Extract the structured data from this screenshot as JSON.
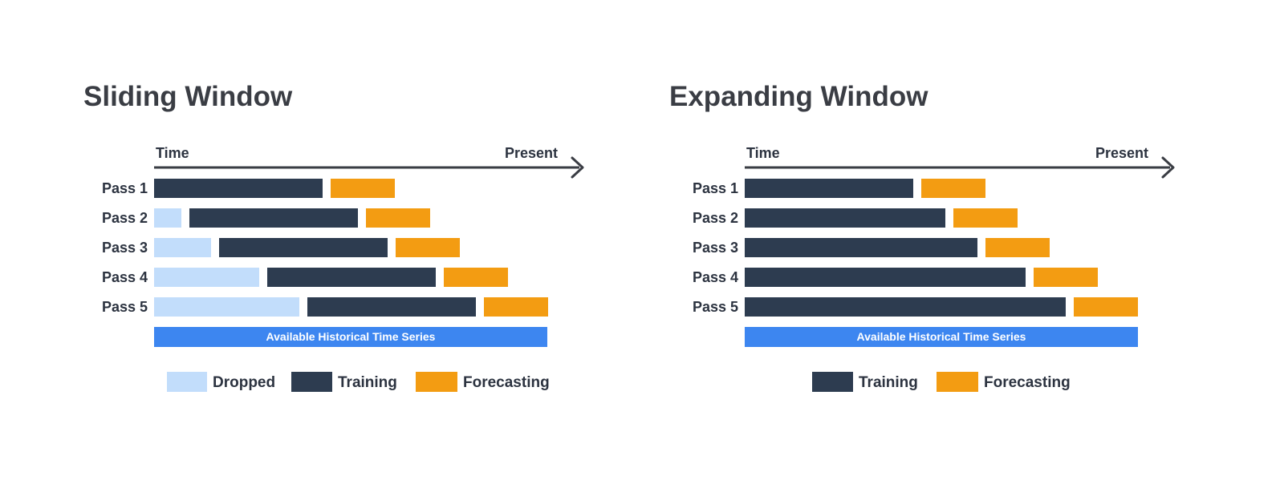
{
  "colors": {
    "dropped": "#c2ddfb",
    "training": "#2d3c50",
    "forecasting": "#f39c12",
    "history": "#3d86f0",
    "axis": "#3a3d44"
  },
  "panels": [
    {
      "id": "sliding",
      "title": "Sliding Window",
      "axis": {
        "start_label": "Time",
        "end_label": "Present"
      },
      "passes": [
        {
          "label": "Pass 1",
          "dropped": 0,
          "training": 21,
          "forecasting": 8
        },
        {
          "label": "Pass 2",
          "dropped": 3.4,
          "training": 21,
          "forecasting": 8
        },
        {
          "label": "Pass 3",
          "dropped": 7.1,
          "training": 21,
          "forecasting": 8
        },
        {
          "label": "Pass 4",
          "dropped": 13.1,
          "training": 21,
          "forecasting": 8
        },
        {
          "label": "Pass 5",
          "dropped": 18.1,
          "training": 21,
          "forecasting": 8
        }
      ],
      "history_label": "Available Historical Time Series",
      "legend": [
        {
          "key": "dropped",
          "label": "Dropped"
        },
        {
          "key": "training",
          "label": "Training"
        },
        {
          "key": "forecasting",
          "label": "Forecasting"
        }
      ]
    },
    {
      "id": "expanding",
      "title": "Expanding Window",
      "axis": {
        "start_label": "Time",
        "end_label": "Present"
      },
      "passes": [
        {
          "label": "Pass 1",
          "dropped": 0,
          "training": 21,
          "forecasting": 8
        },
        {
          "label": "Pass 2",
          "dropped": 0,
          "training": 25,
          "forecasting": 8
        },
        {
          "label": "Pass 3",
          "dropped": 0,
          "training": 29,
          "forecasting": 8
        },
        {
          "label": "Pass 4",
          "dropped": 0,
          "training": 35,
          "forecasting": 8
        },
        {
          "label": "Pass 5",
          "dropped": 0,
          "training": 40,
          "forecasting": 8
        }
      ],
      "history_label": "Available Historical Time Series",
      "legend": [
        {
          "key": "training",
          "label": "Training"
        },
        {
          "key": "forecasting",
          "label": "Forecasting"
        }
      ]
    }
  ]
}
